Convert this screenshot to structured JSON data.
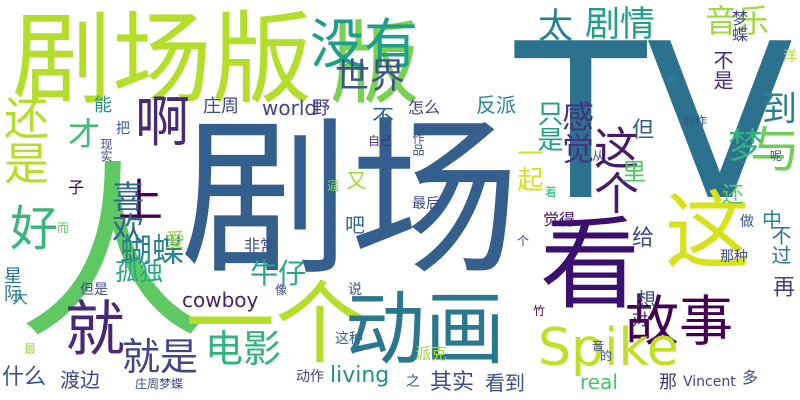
{
  "words": [
    {
      "text": "剧场",
      "color": "#355f8d"
    },
    {
      "text": "TV",
      "color": "#2c728e"
    },
    {
      "text": "人",
      "color": "#5ec962"
    },
    {
      "text": "剧场版",
      "color": "#b5de2b"
    },
    {
      "text": "版",
      "color": "#7ad151"
    },
    {
      "text": "看",
      "color": "#3b0f70"
    },
    {
      "text": "一个",
      "color": "#b5de2b"
    },
    {
      "text": "动画",
      "color": "#2a788e"
    },
    {
      "text": "这",
      "color": "#d8e219"
    },
    {
      "text": "还是",
      "color": "#b5de2b"
    },
    {
      "text": "没有",
      "color": "#1f9e89"
    },
    {
      "text": "故事",
      "color": "#440154"
    },
    {
      "text": "与",
      "color": "#6ece58"
    },
    {
      "text": "啊",
      "color": "#482878"
    },
    {
      "text": "就",
      "color": "#482878"
    },
    {
      "text": "Spike",
      "color": "#c0df25"
    },
    {
      "text": "电影",
      "color": "#2fb47c"
    },
    {
      "text": "就是",
      "color": "#414487"
    },
    {
      "text": "上",
      "color": "#440154"
    },
    {
      "text": "好",
      "color": "#35b779"
    },
    {
      "text": "这个",
      "color": "#481a6c"
    },
    {
      "text": "太",
      "color": "#26828e"
    },
    {
      "text": "剧情",
      "color": "#1f9e89"
    },
    {
      "text": "音乐",
      "color": "#a0da39"
    },
    {
      "text": "世界",
      "color": "#3b528b"
    },
    {
      "text": "喜欢",
      "color": "#31688e"
    },
    {
      "text": "到",
      "color": "#26828e"
    },
    {
      "text": "感觉",
      "color": "#46327e"
    },
    {
      "text": "梦",
      "color": "#2fb47c"
    },
    {
      "text": "蝴蝶",
      "color": "#25838e"
    },
    {
      "text": "孤独",
      "color": "#22a884"
    },
    {
      "text": "才",
      "color": "#3dbc74"
    },
    {
      "text": "牛仔",
      "color": "#22a884"
    },
    {
      "text": "cowboy",
      "color": "#481f70"
    },
    {
      "text": "living",
      "color": "#21918c"
    },
    {
      "text": "real",
      "color": "#4ac16d"
    },
    {
      "text": "渡边",
      "color": "#404688"
    },
    {
      "text": "什么",
      "color": "#3b528b"
    },
    {
      "text": "星际",
      "color": "#2c728e"
    },
    {
      "text": "其实",
      "color": "#3e4989"
    },
    {
      "text": "看到",
      "color": "#3b528b"
    },
    {
      "text": "一起",
      "color": "#d8e219"
    },
    {
      "text": "只是",
      "color": "#1fa187"
    },
    {
      "text": "反派",
      "color": "#23898e"
    },
    {
      "text": "world",
      "color": "#414487"
    },
    {
      "text": "庄周",
      "color": "#3e4989"
    },
    {
      "text": "野",
      "color": "#443983"
    },
    {
      "text": "怎么",
      "color": "#453781"
    },
    {
      "text": "不",
      "color": "#31688e"
    },
    {
      "text": "又",
      "color": "#a0da39"
    },
    {
      "text": "吧",
      "color": "#31688e"
    },
    {
      "text": "里",
      "color": "#52c569"
    },
    {
      "text": "给",
      "color": "#3e4989"
    },
    {
      "text": "还",
      "color": "#5ec962"
    },
    {
      "text": "但",
      "color": "#38598c"
    },
    {
      "text": "不是",
      "color": "#482878"
    },
    {
      "text": "梦蝶",
      "color": "#3e4989"
    },
    {
      "text": "想",
      "color": "#3e4989"
    },
    {
      "text": "对",
      "color": "#471063"
    },
    {
      "text": "能",
      "color": "#21918c"
    },
    {
      "text": "爱",
      "color": "#9fda3a"
    },
    {
      "text": "中",
      "color": "#26828e"
    },
    {
      "text": "不过",
      "color": "#2c728e"
    },
    {
      "text": "再",
      "color": "#433e85"
    },
    {
      "text": "非常",
      "color": "#3b528b"
    },
    {
      "text": "派克",
      "color": "#9fda3a"
    },
    {
      "text": "这种",
      "color": "#31688e"
    },
    {
      "text": "动作",
      "color": "#404688"
    },
    {
      "text": "庄周梦蝶",
      "color": "#404688"
    },
    {
      "text": "Vincent",
      "color": "#414487"
    },
    {
      "text": "多",
      "color": "#3b528b"
    },
    {
      "text": "那",
      "color": "#443a83"
    },
    {
      "text": "最后",
      "color": "#3e4989"
    },
    {
      "text": "觉得",
      "color": "#471063"
    },
    {
      "text": "那种",
      "color": "#3e4989"
    },
    {
      "text": "做",
      "color": "#3b528b"
    },
    {
      "text": "洋",
      "color": "#b5de2b"
    },
    {
      "text": "但是",
      "color": "#3e4989"
    },
    {
      "text": "大",
      "color": "#21918c"
    },
    {
      "text": "把",
      "color": "#3b528b"
    },
    {
      "text": "现实",
      "color": "#404688"
    },
    {
      "text": "子",
      "color": "#440154"
    },
    {
      "text": "而",
      "color": "#5ec962"
    },
    {
      "text": "最",
      "color": "#a0da39"
    },
    {
      "text": "更",
      "color": "#26828e"
    },
    {
      "text": "制作",
      "color": "#3b528b"
    },
    {
      "text": "自己",
      "color": "#46327e"
    },
    {
      "text": "作品",
      "color": "#3b528b"
    },
    {
      "text": "逼",
      "color": "#7ad151"
    },
    {
      "text": "着",
      "color": "#2fb47c"
    },
    {
      "text": "像",
      "color": "#3e4989"
    },
    {
      "text": "个",
      "color": "#46327e"
    },
    {
      "text": "呢",
      "color": "#3e4989"
    },
    {
      "text": "从",
      "color": "#3b528b"
    },
    {
      "text": "说",
      "color": "#3e4989"
    },
    {
      "text": "之",
      "color": "#3b528b"
    },
    {
      "text": "竹",
      "color": "#440154"
    },
    {
      "text": "音",
      "color": "#3e4989"
    },
    {
      "text": "的",
      "color": "#3b528b"
    }
  ]
}
